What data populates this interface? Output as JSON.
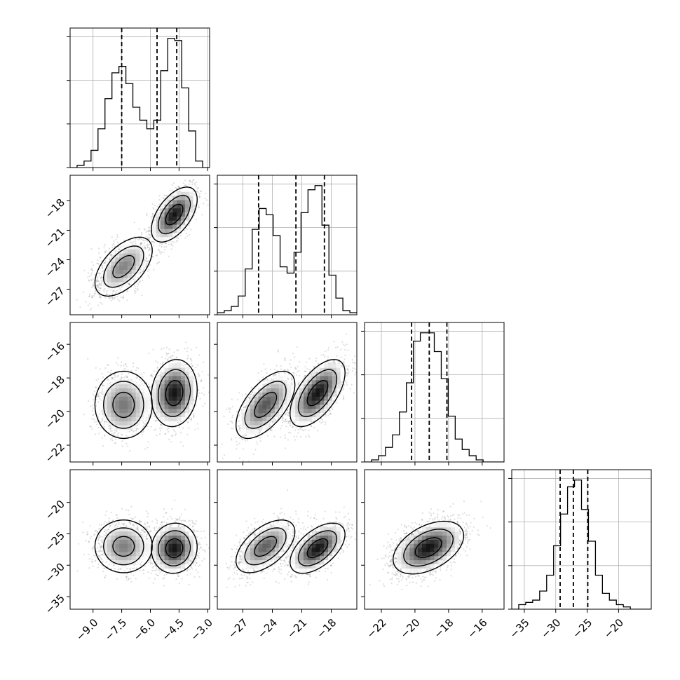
{
  "chart_data": {
    "type": "corner",
    "variables": 4,
    "axes": [
      {
        "index": 0,
        "range": [
          -10.2,
          -2.9
        ],
        "ticks": [
          -9.0,
          -7.5,
          -6.0,
          -4.5,
          -3.0
        ],
        "tick_labels": [
          "−9.0",
          "−7.5",
          "−6.0",
          "−4.5",
          "−3.0"
        ]
      },
      {
        "index": 1,
        "range": [
          -29.6,
          -15.4
        ],
        "ticks": [
          -27,
          -24,
          -21,
          -18
        ],
        "tick_labels": [
          "−27",
          "−24",
          "−21",
          "−18"
        ]
      },
      {
        "index": 2,
        "range": [
          -23.0,
          -14.7
        ],
        "ticks": [
          -22,
          -20,
          -18,
          -16
        ],
        "tick_labels": [
          "−22",
          "−20",
          "−18",
          "−16"
        ]
      },
      {
        "index": 3,
        "range": [
          -37.0,
          -14.8
        ],
        "ticks": [
          -35,
          -30,
          -25,
          -20
        ],
        "tick_labels": [
          "−35",
          "−30",
          "−25",
          "−20"
        ]
      }
    ],
    "histograms": [
      {
        "index": 0,
        "bin_edges": [
          -10.2,
          -9.835,
          -9.47,
          -9.105,
          -8.74,
          -8.375,
          -8.01,
          -7.645,
          -7.28,
          -6.915,
          -6.55,
          -6.185,
          -5.82,
          -5.455,
          -5.09,
          -4.725,
          -4.36,
          -3.995,
          -3.63,
          -3.265,
          -2.9
        ],
        "counts": [
          0,
          1,
          3,
          8,
          18,
          32,
          44,
          47,
          39,
          28,
          22,
          18,
          22,
          45,
          60,
          59,
          37,
          17,
          3,
          0
        ],
        "quantiles": [
          -7.5,
          -5.65,
          -4.62
        ]
      },
      {
        "index": 1,
        "bin_edges": [
          -29.6,
          -28.89,
          -28.18,
          -27.47,
          -26.76,
          -26.05,
          -25.34,
          -24.63,
          -23.92,
          -23.21,
          -22.5,
          -21.79,
          -21.08,
          -20.37,
          -19.66,
          -18.95,
          -18.24,
          -17.53,
          -16.82,
          -16.11,
          -15.4
        ],
        "counts": [
          1,
          2,
          4,
          9,
          22,
          41,
          51,
          48,
          38,
          23,
          20,
          30,
          49,
          60,
          62,
          43,
          19,
          8,
          2,
          1
        ],
        "quantiles": [
          -25.4,
          -21.6,
          -18.7
        ]
      },
      {
        "index": 2,
        "bin_edges": [
          -23.0,
          -22.585,
          -22.17,
          -21.755,
          -21.34,
          -20.925,
          -20.51,
          -20.095,
          -19.68,
          -19.265,
          -18.85,
          -18.435,
          -18.02,
          -17.605,
          -17.19,
          -16.775,
          -16.36,
          -15.945,
          -15.53,
          -15.115,
          -14.7
        ],
        "counts": [
          0,
          1,
          3,
          7,
          13,
          24,
          38,
          58,
          62,
          62,
          53,
          40,
          22,
          11,
          6,
          3,
          1,
          0,
          0,
          0
        ],
        "quantiles": [
          -20.2,
          -19.15,
          -18.1
        ]
      },
      {
        "index": 3,
        "bin_edges": [
          -37.0,
          -35.89,
          -34.78,
          -33.67,
          -32.56,
          -31.45,
          -30.34,
          -29.23,
          -28.12,
          -27.01,
          -25.9,
          -24.79,
          -23.68,
          -22.57,
          -21.46,
          -20.35,
          -19.24,
          -18.13,
          -17.02,
          -15.91,
          -14.8
        ],
        "counts": [
          0,
          2,
          3,
          4,
          8,
          15,
          28,
          42,
          54,
          57,
          44,
          30,
          15,
          7,
          4,
          2,
          1,
          0,
          0,
          0
        ],
        "quantiles": [
          -29.3,
          -27.2,
          -24.9
        ]
      }
    ],
    "pairs": [
      {
        "row": 1,
        "col": 0,
        "modes": [
          {
            "mean": [
              -7.4,
              -24.7
            ],
            "sd": [
              0.75,
              1.5
            ],
            "rho": 0.55,
            "weight": 0.45
          },
          {
            "mean": [
              -4.75,
              -19.4
            ],
            "sd": [
              0.6,
              1.4
            ],
            "rho": 0.55,
            "weight": 0.55
          }
        ]
      },
      {
        "row": 2,
        "col": 0,
        "modes": [
          {
            "mean": [
              -7.4,
              -19.6
            ],
            "sd": [
              0.75,
              1.0
            ],
            "rho": 0.0,
            "weight": 0.45
          },
          {
            "mean": [
              -4.75,
              -18.9
            ],
            "sd": [
              0.6,
              1.0
            ],
            "rho": 0.1,
            "weight": 0.55
          }
        ]
      },
      {
        "row": 2,
        "col": 1,
        "modes": [
          {
            "mean": [
              -24.7,
              -19.6
            ],
            "sd": [
              1.5,
              1.0
            ],
            "rho": 0.6,
            "weight": 0.45
          },
          {
            "mean": [
              -19.4,
              -18.9
            ],
            "sd": [
              1.4,
              1.0
            ],
            "rho": 0.6,
            "weight": 0.55
          }
        ]
      },
      {
        "row": 3,
        "col": 0,
        "modes": [
          {
            "mean": [
              -7.4,
              -27.0
            ],
            "sd": [
              0.75,
              2.1
            ],
            "rho": 0.0,
            "weight": 0.45
          },
          {
            "mean": [
              -4.75,
              -27.3
            ],
            "sd": [
              0.6,
              2.0
            ],
            "rho": 0.05,
            "weight": 0.55
          }
        ]
      },
      {
        "row": 3,
        "col": 1,
        "modes": [
          {
            "mean": [
              -24.7,
              -27.0
            ],
            "sd": [
              1.5,
              2.1
            ],
            "rho": 0.55,
            "weight": 0.45
          },
          {
            "mean": [
              -19.4,
              -27.3
            ],
            "sd": [
              1.4,
              2.0
            ],
            "rho": 0.55,
            "weight": 0.55
          }
        ]
      },
      {
        "row": 3,
        "col": 2,
        "modes": [
          {
            "mean": [
              -19.2,
              -27.2
            ],
            "sd": [
              1.05,
              2.1
            ],
            "rho": 0.45,
            "weight": 1.0
          }
        ]
      }
    ],
    "grid": true,
    "title": "",
    "colors": {
      "line": "#000000",
      "grid": "#b0b0b0",
      "points": "#000000",
      "contour_fill": "#ffffff"
    }
  }
}
